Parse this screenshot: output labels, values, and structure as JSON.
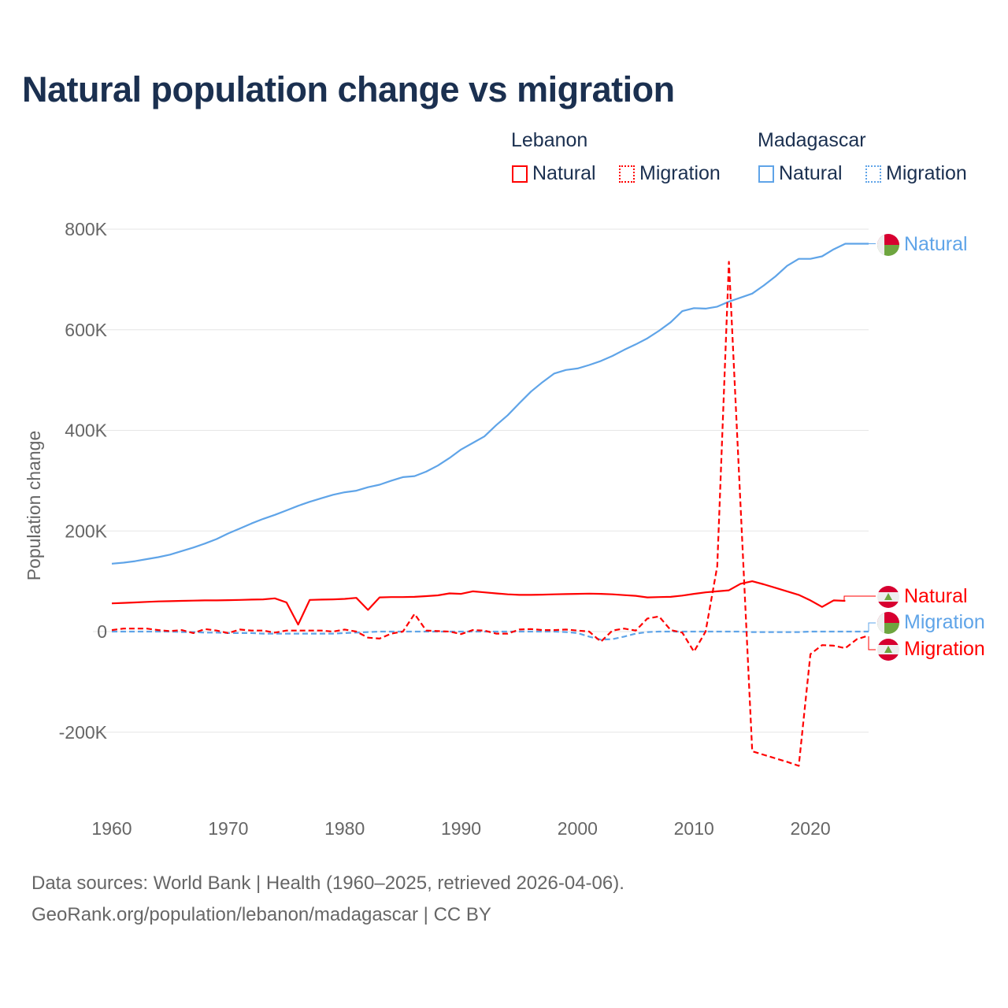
{
  "chart_data": {
    "type": "line",
    "title": "Natural population change vs migration",
    "ylabel": "Population change",
    "xlabel": "",
    "xlim": [
      1960,
      2025
    ],
    "ylim": [
      -200000,
      800000
    ],
    "x_ticks": [
      "1960",
      "1970",
      "1980",
      "1990",
      "2000",
      "2010",
      "2020"
    ],
    "y_ticks": [
      {
        "value": 800000,
        "label": "800K"
      },
      {
        "value": 600000,
        "label": "600K"
      },
      {
        "value": 400000,
        "label": "400K"
      },
      {
        "value": 200000,
        "label": "200K"
      },
      {
        "value": 0,
        "label": "0"
      },
      {
        "value": -200000,
        "label": "-200K"
      }
    ],
    "grid": true,
    "legend": {
      "groups": [
        {
          "country": "Lebanon",
          "items": [
            "Natural",
            "Migration"
          ]
        },
        {
          "country": "Madagascar",
          "items": [
            "Natural",
            "Migration"
          ]
        }
      ],
      "placement": "top-right"
    },
    "x": [
      1960,
      1961,
      1962,
      1963,
      1964,
      1965,
      1966,
      1967,
      1968,
      1969,
      1970,
      1971,
      1972,
      1973,
      1974,
      1975,
      1976,
      1977,
      1978,
      1979,
      1980,
      1981,
      1982,
      1983,
      1984,
      1985,
      1986,
      1987,
      1988,
      1989,
      1990,
      1991,
      1992,
      1993,
      1994,
      1995,
      1996,
      1997,
      1998,
      1999,
      2000,
      2001,
      2002,
      2003,
      2004,
      2005,
      2006,
      2007,
      2008,
      2009,
      2010,
      2011,
      2012,
      2013,
      2014,
      2015,
      2016,
      2017,
      2018,
      2019,
      2020,
      2021,
      2022,
      2023,
      2024,
      2025
    ],
    "series": [
      {
        "name": "Madagascar Natural",
        "country": "Madagascar",
        "kind": "Natural",
        "color": "#5fa4e8",
        "dash": false,
        "end_label": "Natural",
        "values": [
          135000,
          137000,
          140000,
          144000,
          148000,
          153000,
          160000,
          167000,
          175000,
          184000,
          195000,
          205000,
          215000,
          224000,
          232000,
          241000,
          250000,
          258000,
          265000,
          272000,
          277000,
          280000,
          287000,
          292000,
          300000,
          307000,
          309000,
          318000,
          330000,
          345000,
          362000,
          375000,
          388000,
          410000,
          430000,
          454000,
          477000,
          496000,
          513000,
          520000,
          523000,
          530000,
          538000,
          548000,
          560000,
          571000,
          583000,
          598000,
          615000,
          637000,
          643000,
          642000,
          646000,
          656000,
          664000,
          672000,
          688000,
          706000,
          727000,
          741000,
          741000,
          746000,
          760000,
          771000,
          771000,
          771000
        ]
      },
      {
        "name": "Madagascar Migration",
        "country": "Madagascar",
        "kind": "Migration",
        "color": "#5fa4e8",
        "dash": true,
        "end_label": "Migration",
        "values": [
          0,
          0,
          0,
          0,
          0,
          0,
          -1000,
          -1000,
          -2000,
          -2000,
          -3000,
          -3000,
          -3000,
          -4000,
          -4000,
          -4000,
          -4000,
          -4000,
          -4000,
          -4000,
          -3000,
          -2000,
          -1000,
          0,
          0,
          0,
          0,
          0,
          0,
          0,
          0,
          0,
          0,
          0,
          0,
          0,
          0,
          0,
          0,
          -1000,
          -3000,
          -10000,
          -16000,
          -15000,
          -10000,
          -4000,
          -1000,
          0,
          0,
          0,
          0,
          0,
          0,
          0,
          0,
          -1000,
          -1000,
          -1000,
          -1000,
          -1000,
          0,
          0,
          0,
          0,
          0,
          0
        ]
      },
      {
        "name": "Lebanon Natural",
        "country": "Lebanon",
        "kind": "Natural",
        "color": "#ff0000",
        "dash": false,
        "end_label": "Natural",
        "values": [
          56000,
          57000,
          58000,
          59000,
          60000,
          60500,
          61000,
          61500,
          62000,
          62000,
          62500,
          63000,
          63500,
          64000,
          66000,
          58000,
          14000,
          63000,
          63500,
          64000,
          65000,
          67000,
          43000,
          68000,
          68500,
          68500,
          69000,
          70500,
          72000,
          76000,
          75000,
          80000,
          78000,
          76000,
          74000,
          73000,
          73000,
          73500,
          74000,
          74500,
          75000,
          75500,
          75000,
          74000,
          72500,
          71000,
          68000,
          68500,
          69000,
          71500,
          75000,
          78000,
          80000,
          82000,
          95000,
          100000,
          94000,
          87000,
          80000,
          73000,
          62000,
          49000,
          62000,
          61000,
          null,
          null
        ]
      },
      {
        "name": "Lebanon Migration",
        "country": "Lebanon",
        "kind": "Migration",
        "color": "#ff0000",
        "dash": true,
        "end_label": "Migration",
        "values": [
          3000,
          6000,
          6000,
          6000,
          3000,
          1000,
          3000,
          -3000,
          5000,
          2000,
          -3000,
          4000,
          2000,
          2000,
          -2000,
          2000,
          2000,
          2000,
          2000,
          0,
          4000,
          0,
          -12000,
          -14000,
          -4000,
          0,
          35000,
          2000,
          1000,
          0,
          -5000,
          3000,
          2000,
          -4000,
          -4000,
          4000,
          5000,
          3000,
          3000,
          4000,
          2000,
          0,
          -20000,
          2000,
          6000,
          2000,
          26000,
          30000,
          3000,
          -2000,
          -40000,
          0,
          130000,
          735000,
          250000,
          -238000,
          -245000,
          -252000,
          -259000,
          -267000,
          -45000,
          -27000,
          -28000,
          -33000,
          -15000,
          -8000
        ]
      }
    ]
  },
  "footer": {
    "line1": "Data sources: World Bank | Health (1960–2025, retrieved 2026-04-06).",
    "line2": "GeoRank.org/population/lebanon/madagascar | CC BY"
  },
  "colors": {
    "lebanon": "#ff0000",
    "madagascar": "#5fa4e8",
    "title": "#1b3050"
  }
}
